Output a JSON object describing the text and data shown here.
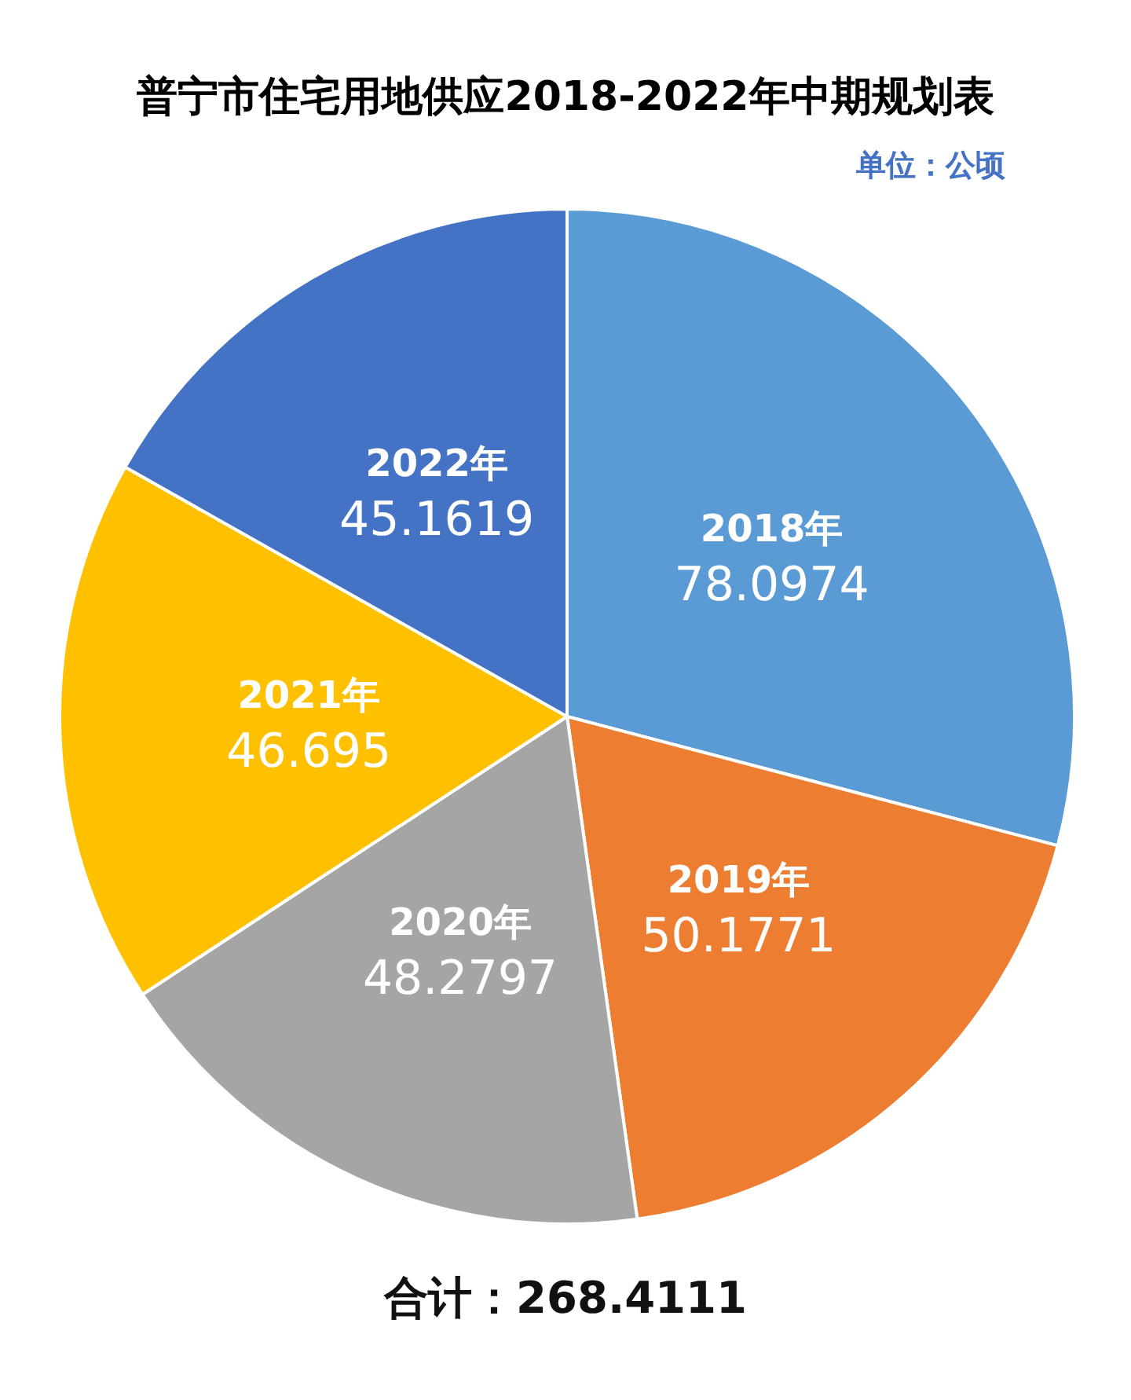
{
  "chart_data": {
    "type": "pie",
    "title": "普宁市住宅用地供应2018-2022年中期规划表",
    "categories": [
      "2018年",
      "2019年",
      "2020年",
      "2021年",
      "2022年"
    ],
    "values": [
      78.0974,
      50.1771,
      48.2797,
      46.695,
      45.1619
    ],
    "colors": [
      "#5b9bd5",
      "#ed7d31",
      "#a5a5a5",
      "#ffc000",
      "#4472c4"
    ],
    "data_labels": true,
    "annotations": [
      "单位：公顷",
      "合计：268.4111"
    ]
  }
}
